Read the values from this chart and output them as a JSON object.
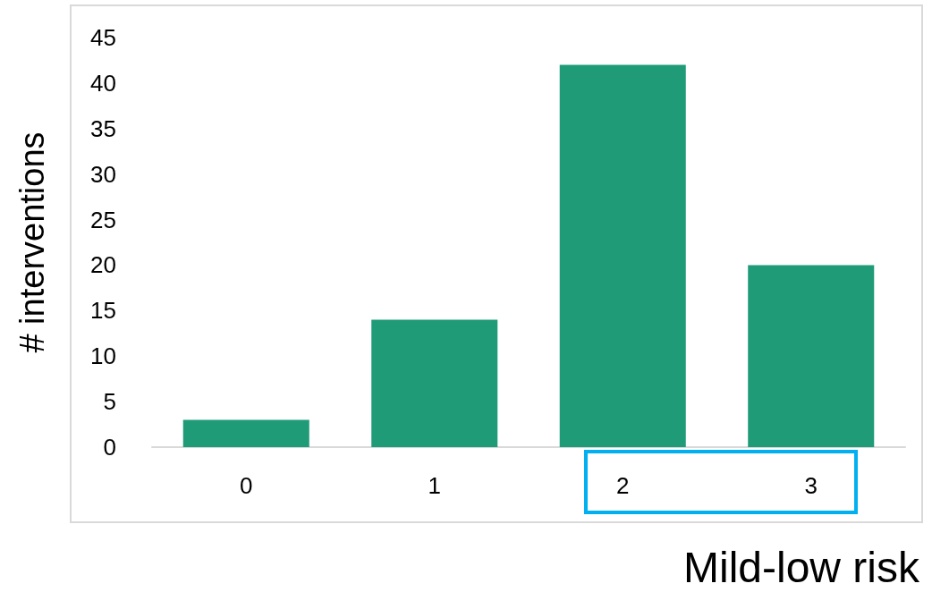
{
  "chart_data": {
    "type": "bar",
    "xlabel": "Mild-low risk",
    "ylabel": "# interventions",
    "categories": [
      "0",
      "1",
      "2",
      "3"
    ],
    "values": [
      3,
      14,
      42,
      20
    ],
    "color": "#1f9b78",
    "ylim": [
      0,
      45
    ],
    "yticks": [
      0,
      5,
      10,
      15,
      20,
      25,
      30,
      35,
      40,
      45
    ],
    "grid": false
  }
}
